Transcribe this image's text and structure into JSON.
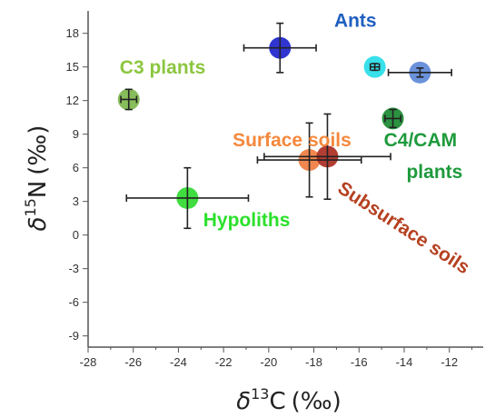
{
  "chart_data": {
    "type": "scatter",
    "title": "",
    "xlabel": {
      "symbol": "δ",
      "superscript": "13",
      "element": "C",
      "unit": "(‰)"
    },
    "ylabel": {
      "symbol": "δ",
      "superscript": "15",
      "element": "N",
      "unit": "(‰)"
    },
    "xlim": [
      -28,
      -10.5
    ],
    "ylim": [
      -10,
      20
    ],
    "xticks": [
      -28,
      -26,
      -24,
      -22,
      -20,
      -18,
      -16,
      -14,
      -12
    ],
    "yticks": [
      -9,
      -6,
      -3,
      0,
      3,
      6,
      9,
      12,
      15,
      18
    ],
    "grid": false,
    "legend": "none",
    "points": [
      {
        "x": -26.2,
        "y": 12.1,
        "xerr": 0.35,
        "yerr": 0.9,
        "color": "#7ab648"
      },
      {
        "x": -23.6,
        "y": 3.3,
        "xerr": 2.7,
        "yerr": 2.7,
        "color": "#2bd92b"
      },
      {
        "x": -19.5,
        "y": 16.7,
        "xerr": 1.6,
        "yerr": 2.2,
        "color": "#1a1fcc"
      },
      {
        "x": -15.3,
        "y": 15.0,
        "xerr": 0.2,
        "yerr": 0.3,
        "color": "#22dde8"
      },
      {
        "x": -13.3,
        "y": 14.5,
        "xerr": 1.4,
        "yerr": 0.4,
        "color": "#5b86d6"
      },
      {
        "x": -14.5,
        "y": 10.4,
        "xerr": 0.35,
        "yerr": 0.8,
        "color": "#15862c"
      },
      {
        "x": -18.2,
        "y": 6.7,
        "xerr": 2.3,
        "yerr": 3.3,
        "color": "#f07a3c"
      },
      {
        "x": -17.4,
        "y": 7.0,
        "xerr": 2.8,
        "yerr": 3.8,
        "color": "#a8281d"
      }
    ],
    "annotations": [
      {
        "text": "Ants",
        "x": -17.1,
        "y": 18.6,
        "color": "#1f5fc0"
      },
      {
        "text": "C3 plants",
        "x": -26.6,
        "y": 14.4,
        "color": "#8cc63f"
      },
      {
        "text": "Surface soils",
        "x": -21.6,
        "y": 7.9,
        "color": "#f5883c"
      },
      {
        "text": "C4/CAM",
        "x": -14.9,
        "y": 7.9,
        "color": "#1e9a3c"
      },
      {
        "text": "plants",
        "x": -13.9,
        "y": 5.1,
        "color": "#1e9a3c"
      },
      {
        "text": "Hypoliths",
        "x": -22.9,
        "y": 0.8,
        "color": "#2be02b"
      },
      {
        "text": "Subsurface soils",
        "x": -17.0,
        "y": 3.9,
        "color": "#b5401f",
        "rotation": 33
      }
    ]
  }
}
